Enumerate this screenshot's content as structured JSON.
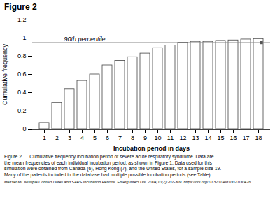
{
  "chart_data": {
    "type": "bar",
    "title": "Figure 2",
    "xlabel": "Incubation period in days",
    "ylabel": "Cumulative frequency",
    "categories": [
      1,
      2,
      3,
      4,
      5,
      6,
      7,
      8,
      9,
      10,
      11,
      12,
      13,
      14,
      15,
      16,
      17,
      18
    ],
    "values": [
      0.07,
      0.29,
      0.44,
      0.53,
      0.6,
      0.7,
      0.75,
      0.79,
      0.83,
      0.89,
      0.92,
      0.95,
      0.96,
      0.96,
      0.97,
      0.975,
      0.985,
      0.99
    ],
    "color": "white",
    "ylim": [
      0,
      1.2
    ],
    "yticks": [
      0,
      0.2,
      0.4,
      0.6,
      0.8,
      1,
      1.2
    ],
    "grid": false,
    "annotations": [
      {
        "type": "hline",
        "y": 0.95,
        "text": "90th percentile",
        "color": "#888888",
        "marker": "square"
      }
    ],
    "caption": [
      "Figure 2. . . Cumulative frequency incubation period of severe acute respiratory syndrome. Data are",
      "the mean frequencies of each individual incubation period, as shown in Figure 1. Data used for this",
      "simulation were obtained from Canada (6), Hong Kong (7), and the United States, for a sample size 19.",
      "Many of the patients included in the database had multiple possible incubation periods (see Table)."
    ],
    "citation": "Meltzer MI. Multiple Contact Dates and SARS Incubation Periods. Emerg Infect Dis. 2004;10(2):207-309. https://doi.org/10.3201/eid1002.030426"
  }
}
